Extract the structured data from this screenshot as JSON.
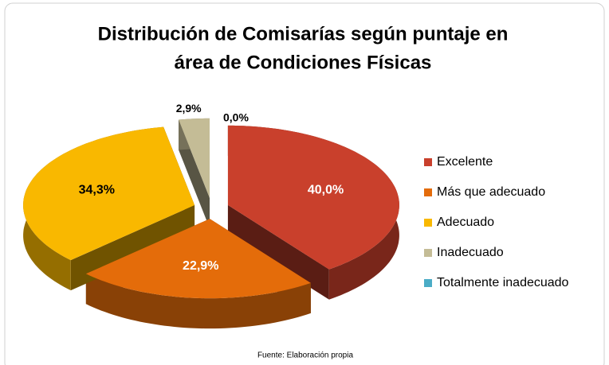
{
  "chart_data": {
    "type": "pie",
    "title": [
      "Distribución de Comisarías según puntaje en",
      "área de Condiciones Físicas"
    ],
    "categories": [
      "Excelente",
      "Más que adecuado",
      "Adecuado",
      "Inadecuado",
      "Totalmente inadecuado"
    ],
    "values": [
      40.0,
      22.9,
      34.3,
      2.9,
      0.0
    ],
    "value_labels": [
      "40,0%",
      "22,9%",
      "34,3%",
      "2,9%",
      "0,0%"
    ],
    "colors": [
      "#c9402c",
      "#e46c0a",
      "#f9b800",
      "#c4bc96",
      "#4bacc6"
    ],
    "legend": "right",
    "source": "Fuente: Elaboración propia"
  }
}
